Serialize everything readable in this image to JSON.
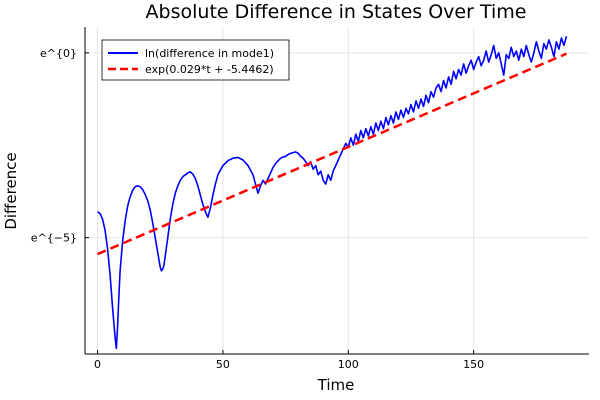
{
  "chart_data": {
    "type": "line",
    "title": "Absolute Difference in States Over Time",
    "xlabel": "Time",
    "ylabel": "Difference",
    "xlim": [
      -5,
      196
    ],
    "ylim": [
      -8.15,
      0.7
    ],
    "x_ticks": [
      {
        "value": 0,
        "label": "0"
      },
      {
        "value": 50,
        "label": "50"
      },
      {
        "value": 100,
        "label": "100"
      },
      {
        "value": 150,
        "label": "150"
      }
    ],
    "y_ticks": [
      {
        "value": 0,
        "label": "e^{0}"
      },
      {
        "value": -5,
        "label": "e^{−5}"
      }
    ],
    "y_scale": "ln (log-scale, tick labels printed as powers of e)",
    "grid": true,
    "legend_position": "top-left",
    "series": [
      {
        "name": "ln(difference in mode1)",
        "color": "#0000ff",
        "style": "solid",
        "x": [
          0,
          1,
          2,
          3,
          4,
          5,
          6,
          7,
          7.5,
          8,
          8.5,
          9,
          10,
          11,
          12,
          13,
          14,
          15,
          16,
          17,
          18,
          19,
          20,
          21,
          22,
          23,
          24,
          25,
          25.5,
          26,
          26.5,
          27,
          28,
          29,
          30,
          31,
          32,
          33,
          34,
          35,
          36,
          37,
          38,
          39,
          40,
          41,
          42,
          43,
          44,
          45,
          46,
          47,
          48,
          50,
          52,
          54,
          56,
          58,
          60,
          62,
          63,
          64,
          65,
          66,
          67,
          68,
          69,
          70,
          71,
          72,
          73,
          74,
          75,
          76,
          77,
          78,
          79,
          80,
          81,
          82,
          83,
          84,
          85,
          86,
          87,
          88,
          89,
          90,
          91,
          92,
          93,
          94,
          95,
          96,
          97,
          98,
          99,
          100,
          101,
          102,
          103,
          104,
          105,
          106,
          107,
          108,
          109,
          110,
          111,
          112,
          113,
          114,
          115,
          116,
          117,
          118,
          119,
          120,
          121,
          122,
          123,
          124,
          125,
          126,
          127,
          128,
          129,
          130,
          131,
          132,
          133,
          134,
          135,
          136,
          137,
          138,
          139,
          140,
          141,
          142,
          143,
          144,
          145,
          146,
          147,
          148,
          149,
          150,
          151,
          152,
          153,
          154,
          155,
          156,
          157,
          158,
          159,
          160,
          161,
          162,
          163,
          164,
          165,
          166,
          167,
          168,
          169,
          170,
          171,
          172,
          173,
          174,
          175,
          176,
          177,
          178,
          179,
          180,
          181,
          182,
          183,
          184,
          185,
          186,
          187
        ],
        "y": [
          -4.3,
          -4.35,
          -4.5,
          -4.8,
          -5.3,
          -6.0,
          -6.9,
          -7.7,
          -8.0,
          -7.4,
          -6.6,
          -5.9,
          -5.1,
          -4.55,
          -4.15,
          -3.9,
          -3.72,
          -3.62,
          -3.6,
          -3.62,
          -3.7,
          -3.83,
          -4.0,
          -4.25,
          -4.6,
          -5.0,
          -5.4,
          -5.8,
          -5.9,
          -5.85,
          -5.75,
          -5.5,
          -5.0,
          -4.5,
          -4.1,
          -3.8,
          -3.6,
          -3.45,
          -3.35,
          -3.3,
          -3.25,
          -3.22,
          -3.28,
          -3.4,
          -3.6,
          -3.85,
          -4.1,
          -4.3,
          -4.45,
          -4.2,
          -3.85,
          -3.55,
          -3.3,
          -3.05,
          -2.92,
          -2.85,
          -2.83,
          -2.9,
          -3.05,
          -3.3,
          -3.55,
          -3.8,
          -3.6,
          -3.45,
          -3.55,
          -3.4,
          -3.25,
          -3.1,
          -3.0,
          -2.92,
          -2.85,
          -2.82,
          -2.8,
          -2.75,
          -2.72,
          -2.7,
          -2.68,
          -2.72,
          -2.8,
          -2.85,
          -2.95,
          -3.05,
          -2.95,
          -3.15,
          -3.05,
          -3.3,
          -3.2,
          -3.45,
          -3.55,
          -3.3,
          -3.45,
          -3.2,
          -3.05,
          -2.9,
          -2.75,
          -2.6,
          -2.45,
          -2.55,
          -2.3,
          -2.5,
          -2.2,
          -2.4,
          -2.1,
          -2.3,
          -2.05,
          -2.25,
          -2.0,
          -2.2,
          -1.9,
          -2.1,
          -1.85,
          -2.05,
          -1.75,
          -1.95,
          -1.7,
          -1.9,
          -1.6,
          -1.8,
          -1.55,
          -1.75,
          -1.5,
          -1.65,
          -1.4,
          -1.6,
          -1.3,
          -1.5,
          -1.25,
          -1.45,
          -1.15,
          -1.35,
          -1.05,
          -1.2,
          -0.95,
          -0.85,
          -1.05,
          -0.75,
          -0.95,
          -0.65,
          -0.85,
          -0.5,
          -0.7,
          -0.45,
          -0.6,
          -0.3,
          -0.55,
          -0.35,
          -0.2,
          -0.45,
          -0.25,
          -0.1,
          -0.35,
          -0.2,
          0.05,
          -0.25,
          -0.05,
          0.2,
          -0.15,
          0.0,
          -0.3,
          -0.6,
          -0.05,
          -0.15,
          0.15,
          -0.1,
          0.05,
          -0.2,
          0.1,
          -0.1,
          0.2,
          -0.05,
          -0.25,
          0.0,
          0.3,
          0.05,
          -0.15,
          0.25,
          0.1,
          0.35,
          0.15,
          -0.1,
          0.3,
          0.1,
          0.4,
          0.2,
          0.45
        ]
      },
      {
        "name": "exp(0.029*t + -5.4462)",
        "color": "#ff0000",
        "style": "dashed",
        "x": [
          0,
          187
        ],
        "y": [
          -5.4462,
          -0.0232
        ]
      }
    ]
  }
}
